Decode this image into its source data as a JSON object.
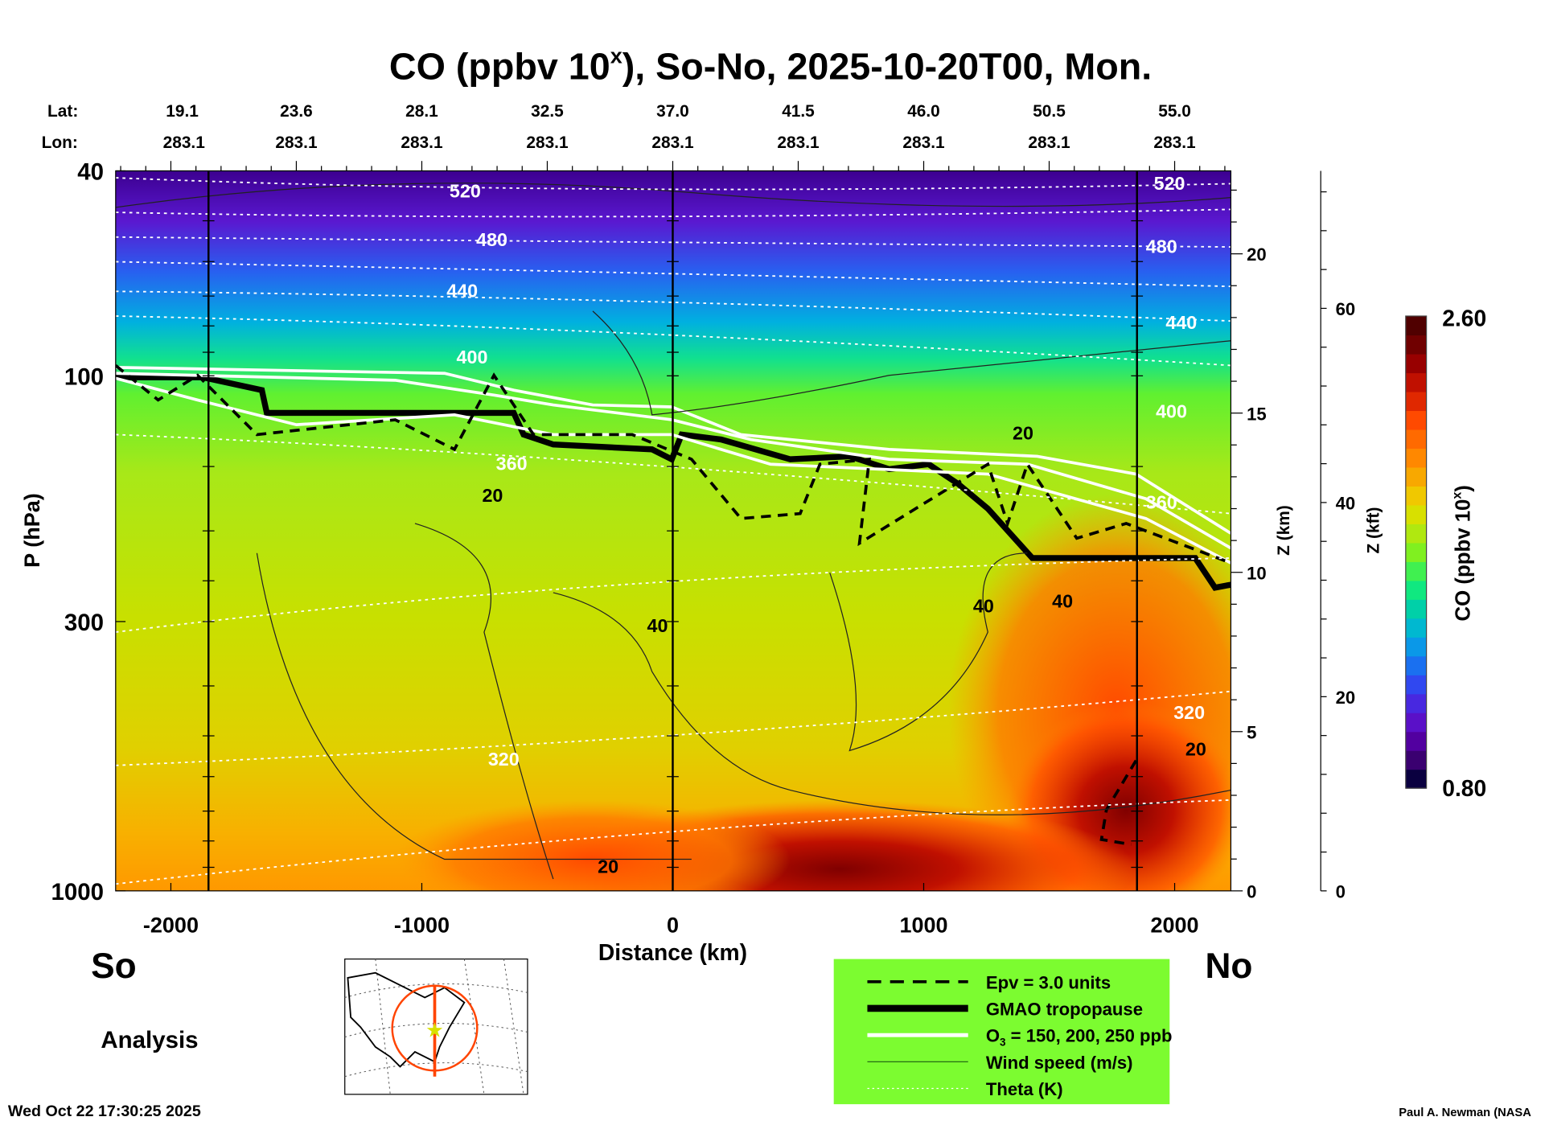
{
  "chart_data": {
    "type": "heatmap",
    "title": "CO (ppbv 10",
    "title_sup": "x",
    "title_rest": "), So-No, 2025-10-20T00, Mon.",
    "xlabel": "Distance (km)",
    "ylabel": "P (hPa)",
    "y2label": "Z (km)",
    "y3label": "Z (kft)",
    "xlim": [
      -2220,
      2224
    ],
    "ylim": [
      1000,
      40
    ],
    "x_ticks": [
      -2000,
      -1000,
      0,
      1000,
      2000
    ],
    "y_ticks": [
      40,
      100,
      300,
      1000
    ],
    "z_km_ticks": [
      0,
      5,
      10,
      15,
      20
    ],
    "z_kft_ticks": [
      0,
      20,
      40,
      60
    ],
    "lat_label": "Lat:",
    "lon_label": "Lon:",
    "lat_ticks": [
      "19.1",
      "23.6",
      "28.1",
      "32.5",
      "37.0",
      "41.5",
      "46.0",
      "50.5",
      "55.0"
    ],
    "lon_ticks": [
      "283.1",
      "283.1",
      "283.1",
      "283.1",
      "283.1",
      "283.1",
      "283.1",
      "283.1",
      "283.1"
    ],
    "lat_tick_distance_km": [
      -2000,
      -1500,
      -1000,
      -500,
      0,
      500,
      1000,
      1500,
      2000
    ],
    "vertical_lines_km": [
      -1850,
      0,
      1850
    ],
    "colorbar": {
      "label": "CO (ppbv 10",
      "label_sup": "x",
      "label_rest": ")",
      "min": "0.80",
      "max": "2.60",
      "colors": [
        "#0a0040",
        "#3a0070",
        "#5200a0",
        "#5a10c8",
        "#4828e0",
        "#3048f0",
        "#1a70f0",
        "#0a98e8",
        "#00b8d0",
        "#00d0a8",
        "#10e880",
        "#40f050",
        "#80f020",
        "#b0e810",
        "#d8e000",
        "#f0c800",
        "#f8a800",
        "#ff8800",
        "#ff6a00",
        "#ff4a00",
        "#e02800",
        "#c01000",
        "#980000",
        "#700000",
        "#500000"
      ]
    },
    "theta_labels": [
      "520",
      "480",
      "440",
      "400",
      "360",
      "320"
    ],
    "wind_labels": [
      "20",
      "40"
    ],
    "legend": {
      "placement": "bottom-center",
      "items": [
        {
          "label": "Epv = 3.0 units",
          "style": "dashed"
        },
        {
          "label": "GMAO tropopause",
          "style": "thick"
        },
        {
          "label": "O",
          "sub": "3",
          "label_rest": " = 150, 200, 250 ppb",
          "style": "white"
        },
        {
          "label": "Wind speed (m/s)",
          "style": "thin"
        },
        {
          "label": "Theta (K)",
          "style": "dotted"
        }
      ]
    },
    "south_label": "So",
    "north_label": "No",
    "analysis_label": "Analysis",
    "timestamp": "Wed Oct 22 17:30:25 2025",
    "credit": "Paul A. Newman (NASA"
  }
}
